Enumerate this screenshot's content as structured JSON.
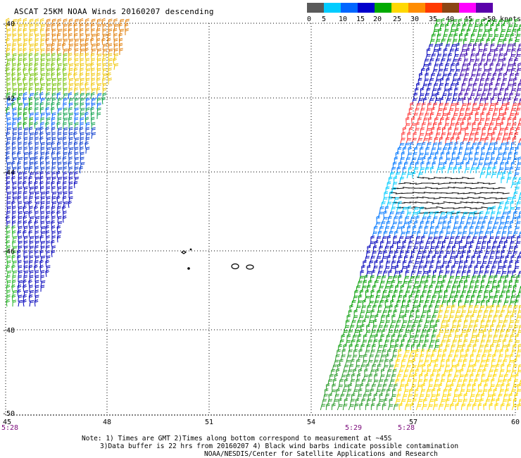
{
  "title": "ASCAT 25KM NOAA Winds 20160207 descending",
  "legend": {
    "labels": [
      "0",
      "5",
      "10",
      "15",
      "20",
      "25",
      "30",
      "35",
      "40",
      "45",
      ">50 knots"
    ],
    "colors": [
      "#5a5a5a",
      "#00ccff",
      "#0066ff",
      "#0000cc",
      "#00aa00",
      "#ffd800",
      "#ff8c00",
      "#ff3a00",
      "#8b4513",
      "#ff00ff",
      "#5a00aa"
    ]
  },
  "axes": {
    "lat_labels": [
      "-40",
      "-42",
      "-44",
      "-46",
      "-48",
      "-50"
    ],
    "lon_labels": [
      "45",
      "48",
      "51",
      "54",
      "57",
      "60"
    ],
    "time_labels": [
      "5:28",
      "5:29",
      "5:28"
    ]
  },
  "notes": {
    "line1": "Note: 1) Times are GMT 2)Times along bottom correspond to measurement at ~45S",
    "line2": "3)Data buffer is 22 hrs from 20160207 4) Black wind barbs indicate possible contamination",
    "line3": "NOAA/NESDIS/Center for Satellite Applications and Research"
  }
}
